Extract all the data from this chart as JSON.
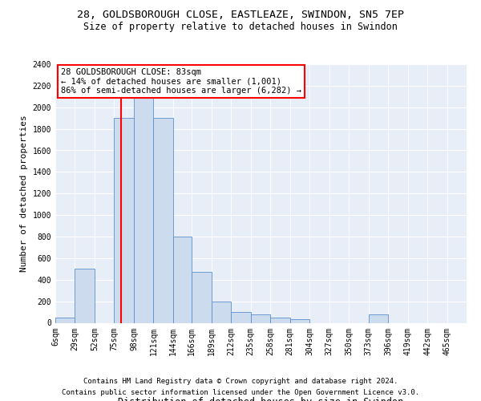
{
  "title1": "28, GOLDSBOROUGH CLOSE, EASTLEAZE, SWINDON, SN5 7EP",
  "title2": "Size of property relative to detached houses in Swindon",
  "xlabel": "Distribution of detached houses by size in Swindon",
  "ylabel": "Number of detached properties",
  "footer1": "Contains HM Land Registry data © Crown copyright and database right 2024.",
  "footer2": "Contains public sector information licensed under the Open Government Licence v3.0.",
  "annotation_line1": "28 GOLDSBOROUGH CLOSE: 83sqm",
  "annotation_line2": "← 14% of detached houses are smaller (1,001)",
  "annotation_line3": "86% of semi-detached houses are larger (6,282) →",
  "bar_color": "#ccdcee",
  "bar_edge_color": "#5b8fcc",
  "red_line_x": 83,
  "categories": [
    "6sqm",
    "29sqm",
    "52sqm",
    "75sqm",
    "98sqm",
    "121sqm",
    "144sqm",
    "166sqm",
    "189sqm",
    "212sqm",
    "235sqm",
    "258sqm",
    "281sqm",
    "304sqm",
    "327sqm",
    "350sqm",
    "373sqm",
    "396sqm",
    "419sqm",
    "442sqm",
    "465sqm"
  ],
  "bin_edges": [
    6,
    29,
    52,
    75,
    98,
    121,
    144,
    166,
    189,
    212,
    235,
    258,
    281,
    304,
    327,
    350,
    373,
    396,
    419,
    442,
    465,
    488
  ],
  "values": [
    50,
    500,
    0,
    1900,
    2350,
    1900,
    800,
    470,
    200,
    100,
    80,
    50,
    30,
    0,
    0,
    0,
    80,
    0,
    0,
    0,
    0
  ],
  "ylim": [
    0,
    2400
  ],
  "yticks": [
    0,
    200,
    400,
    600,
    800,
    1000,
    1200,
    1400,
    1600,
    1800,
    2000,
    2200,
    2400
  ],
  "background_color": "#e8eef8",
  "grid_color": "#ffffff",
  "title1_fontsize": 9.5,
  "title2_fontsize": 8.5,
  "annotation_fontsize": 7.5,
  "xlabel_fontsize": 8.5,
  "ylabel_fontsize": 8,
  "tick_fontsize": 7,
  "footer_fontsize": 6.5
}
